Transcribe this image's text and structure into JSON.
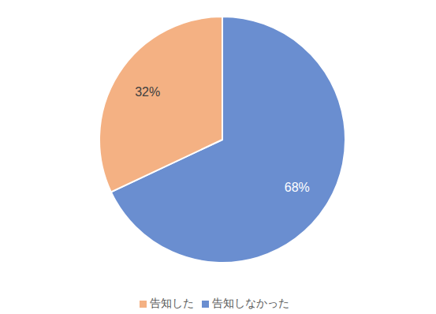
{
  "chart_data": {
    "type": "pie",
    "categories": [
      "告知しなかった",
      "告知した"
    ],
    "values": [
      68,
      32
    ],
    "value_labels": [
      "68%",
      "32%"
    ],
    "colors": [
      "#6a8ed0",
      "#f4b183"
    ],
    "data_labels": true,
    "legend": "bottom"
  }
}
